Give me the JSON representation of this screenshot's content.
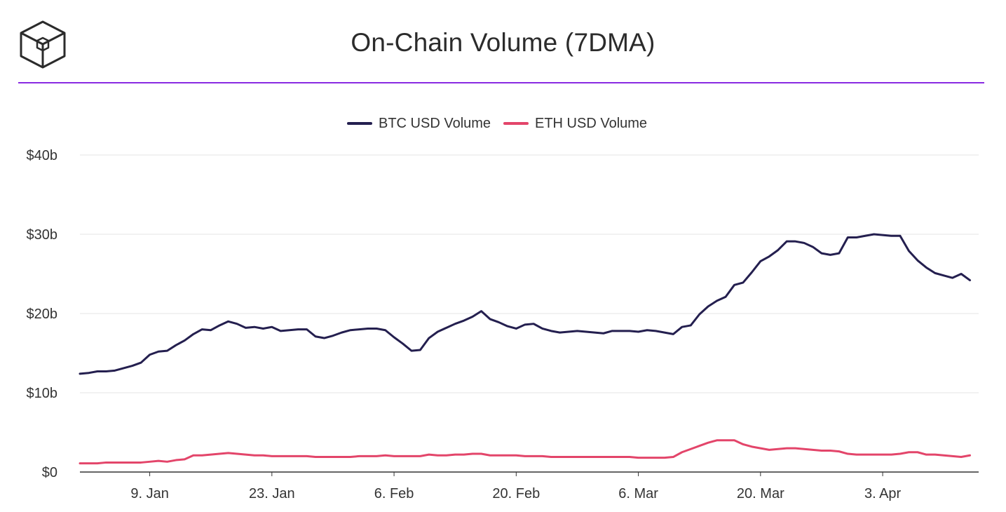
{
  "header": {
    "title": "On-Chain Volume (7DMA)",
    "logo_icon": "cube-logo-icon",
    "rule_color": "#8a2be2"
  },
  "chart_data": {
    "type": "line",
    "title": "On-Chain Volume (7DMA)",
    "xlabel": "",
    "ylabel": "",
    "ylim": [
      0,
      40
    ],
    "y_unit": "billion USD",
    "y_ticks": [
      0,
      10,
      20,
      30,
      40
    ],
    "y_tick_labels": [
      "$0",
      "$10b",
      "$20b",
      "$30b",
      "$40b"
    ],
    "x_range_days": [
      0,
      103
    ],
    "x_ticks": [
      8,
      22,
      36,
      50,
      64,
      78,
      92
    ],
    "x_tick_labels": [
      "9. Jan",
      "23. Jan",
      "6. Feb",
      "20. Feb",
      "6. Mar",
      "20. Mar",
      "3. Apr"
    ],
    "legend_position": "top-center",
    "grid": true,
    "series": [
      {
        "name": "BTC USD Volume",
        "color": "#241f4f",
        "values": [
          12.4,
          12.5,
          12.7,
          12.7,
          12.8,
          13.1,
          13.4,
          13.8,
          14.8,
          15.2,
          15.3,
          16.0,
          16.6,
          17.4,
          18.0,
          17.9,
          18.5,
          19.0,
          18.7,
          18.2,
          18.3,
          18.1,
          18.3,
          17.8,
          17.9,
          18.0,
          18.0,
          17.1,
          16.9,
          17.2,
          17.6,
          17.9,
          18.0,
          18.1,
          18.1,
          17.9,
          17.0,
          16.2,
          15.3,
          15.4,
          16.9,
          17.7,
          18.2,
          18.7,
          19.1,
          19.6,
          20.3,
          19.3,
          18.9,
          18.4,
          18.1,
          18.6,
          18.7,
          18.1,
          17.8,
          17.6,
          17.7,
          17.8,
          17.7,
          17.6,
          17.5,
          17.8,
          17.8,
          17.8,
          17.7,
          17.9,
          17.8,
          17.6,
          17.4,
          18.3,
          18.5,
          19.9,
          20.9,
          21.6,
          22.1,
          23.6,
          23.9,
          25.2,
          26.6,
          27.2,
          28.0,
          29.1,
          29.1,
          28.9,
          28.4,
          27.6,
          27.4,
          27.6,
          29.6,
          29.6,
          29.8,
          30.0,
          29.9,
          29.8,
          29.8,
          27.9,
          26.7,
          25.8,
          25.1,
          24.8,
          24.5,
          25.0,
          24.2
        ]
      },
      {
        "name": "ETH USD Volume",
        "color": "#e3456a",
        "values": [
          1.1,
          1.1,
          1.1,
          1.2,
          1.2,
          1.2,
          1.2,
          1.2,
          1.3,
          1.4,
          1.3,
          1.5,
          1.6,
          2.1,
          2.1,
          2.2,
          2.3,
          2.4,
          2.3,
          2.2,
          2.1,
          2.1,
          2.0,
          2.0,
          2.0,
          2.0,
          2.0,
          1.9,
          1.9,
          1.9,
          1.9,
          1.9,
          2.0,
          2.0,
          2.0,
          2.1,
          2.0,
          2.0,
          2.0,
          2.0,
          2.2,
          2.1,
          2.1,
          2.2,
          2.2,
          2.3,
          2.3,
          2.1,
          2.1,
          2.1,
          2.1,
          2.0,
          2.0,
          2.0,
          1.9,
          1.9,
          1.9,
          1.9,
          1.9,
          1.9,
          1.9,
          1.9,
          1.9,
          1.9,
          1.8,
          1.8,
          1.8,
          1.8,
          1.9,
          2.5,
          2.9,
          3.3,
          3.7,
          4.0,
          4.0,
          4.0,
          3.5,
          3.2,
          3.0,
          2.8,
          2.9,
          3.0,
          3.0,
          2.9,
          2.8,
          2.7,
          2.7,
          2.6,
          2.3,
          2.2,
          2.2,
          2.2,
          2.2,
          2.2,
          2.3,
          2.5,
          2.5,
          2.2,
          2.2,
          2.1,
          2.0,
          1.9,
          2.1
        ]
      }
    ]
  }
}
